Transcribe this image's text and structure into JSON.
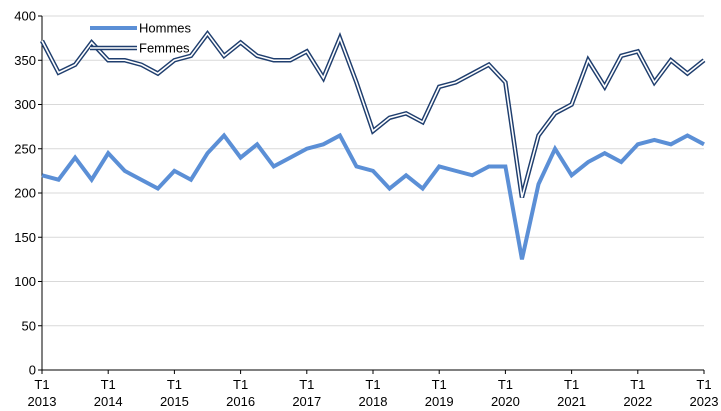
{
  "chart_data": {
    "type": "line",
    "title": "",
    "xlabel": "",
    "ylabel": "",
    "ylim": [
      0,
      400
    ],
    "yticks": [
      0,
      50,
      100,
      150,
      200,
      250,
      300,
      350,
      400
    ],
    "x": [
      "2013-T1",
      "2013-T2",
      "2013-T3",
      "2013-T4",
      "2014-T1",
      "2014-T2",
      "2014-T3",
      "2014-T4",
      "2015-T1",
      "2015-T2",
      "2015-T3",
      "2015-T4",
      "2016-T1",
      "2016-T2",
      "2016-T3",
      "2016-T4",
      "2017-T1",
      "2017-T2",
      "2017-T3",
      "2017-T4",
      "2018-T1",
      "2018-T2",
      "2018-T3",
      "2018-T4",
      "2019-T1",
      "2019-T2",
      "2019-T3",
      "2019-T4",
      "2020-T1",
      "2020-T2",
      "2020-T3",
      "2020-T4",
      "2021-T1",
      "2021-T2",
      "2021-T3",
      "2021-T4",
      "2022-T1",
      "2022-T2",
      "2022-T3",
      "2022-T4",
      "2023-T1"
    ],
    "xtick_labels": [
      {
        "line1": "T1",
        "line2": "2013"
      },
      {
        "line1": "T1",
        "line2": "2014"
      },
      {
        "line1": "T1",
        "line2": "2015"
      },
      {
        "line1": "T1",
        "line2": "2016"
      },
      {
        "line1": "T1",
        "line2": "2017"
      },
      {
        "line1": "T1",
        "line2": "2018"
      },
      {
        "line1": "T1",
        "line2": "2019"
      },
      {
        "line1": "T1",
        "line2": "2020"
      },
      {
        "line1": "T1",
        "line2": "2021"
      },
      {
        "line1": "T1",
        "line2": "2022"
      },
      {
        "line1": "T1",
        "line2": "2023"
      }
    ],
    "legend_placement": "top-left",
    "grid": true,
    "series": [
      {
        "name": "Hommes",
        "color": "#5b8fd6",
        "style": "thick",
        "values": [
          220,
          215,
          240,
          215,
          245,
          225,
          215,
          205,
          225,
          215,
          245,
          265,
          240,
          255,
          230,
          240,
          250,
          255,
          265,
          230,
          225,
          205,
          220,
          205,
          230,
          225,
          220,
          230,
          230,
          125,
          210,
          250,
          220,
          235,
          245,
          235,
          255,
          260,
          255,
          265,
          255
        ]
      },
      {
        "name": "Femmes",
        "color": "#1f3e6e",
        "style": "double",
        "values": [
          372,
          336,
          345,
          370,
          350,
          350,
          345,
          335,
          350,
          355,
          380,
          355,
          370,
          355,
          350,
          350,
          360,
          330,
          375,
          325,
          270,
          285,
          290,
          280,
          320,
          325,
          335,
          345,
          325,
          195,
          265,
          290,
          300,
          350,
          320,
          355,
          360,
          325,
          350,
          335,
          350
        ]
      }
    ]
  }
}
